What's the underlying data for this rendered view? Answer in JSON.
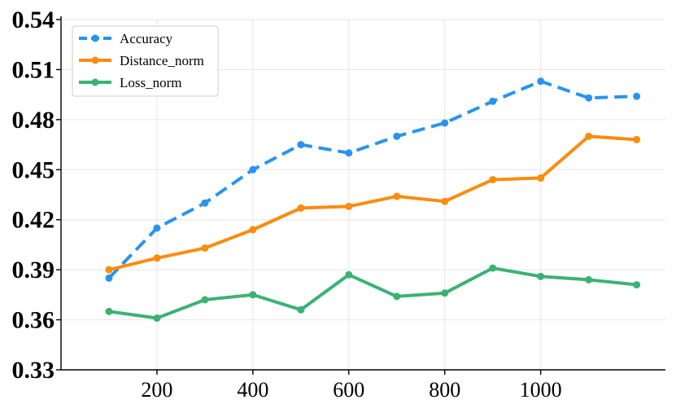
{
  "chart_data": {
    "type": "line",
    "x": [
      100,
      200,
      300,
      400,
      500,
      600,
      700,
      800,
      900,
      1000,
      1100,
      1200
    ],
    "xticks": [
      200,
      400,
      600,
      800,
      1000
    ],
    "xlim": [
      0,
      1260
    ],
    "yticks": [
      "0.33",
      "0.36",
      "0.39",
      "0.42",
      "0.45",
      "0.48",
      "0.51",
      "0.54"
    ],
    "ylim": [
      0.33,
      0.54
    ],
    "grid": true,
    "legend_position": "top-left",
    "series": [
      {
        "name": "Accuracy",
        "color": "#2a93ef",
        "dash": "dashed",
        "values": [
          0.385,
          0.415,
          0.43,
          0.45,
          0.465,
          0.46,
          0.47,
          0.478,
          0.491,
          0.503,
          0.493,
          0.494
        ]
      },
      {
        "name": "Distance_norm",
        "color": "#fb8c0e",
        "dash": "solid",
        "values": [
          0.39,
          0.397,
          0.403,
          0.414,
          0.427,
          0.428,
          0.434,
          0.431,
          0.444,
          0.445,
          0.47,
          0.468
        ]
      },
      {
        "name": "Loss_norm",
        "color": "#3bb273",
        "dash": "solid",
        "values": [
          0.365,
          0.361,
          0.372,
          0.375,
          0.366,
          0.387,
          0.374,
          0.376,
          0.391,
          0.386,
          0.384,
          0.381
        ]
      }
    ]
  }
}
